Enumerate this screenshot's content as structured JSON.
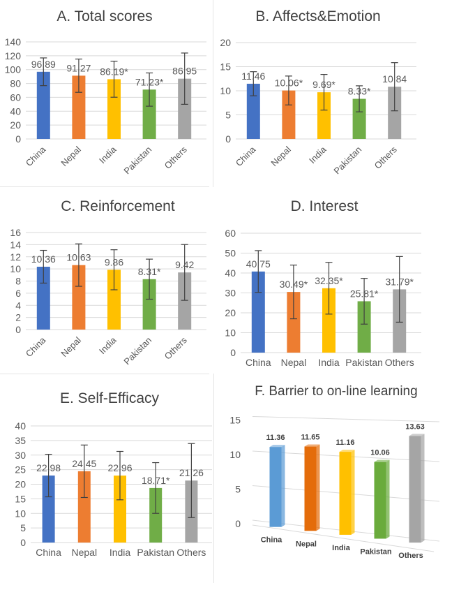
{
  "chart_data": [
    {
      "type": "bar",
      "title": "A. Total scores",
      "categories": [
        "China",
        "Nepal",
        "India",
        "Pakistan",
        "Others"
      ],
      "values": [
        96.89,
        91.27,
        86.19,
        71.23,
        86.95
      ],
      "data_labels": [
        "96.89",
        "91.27",
        "86.19*",
        "71.23*",
        "86.95"
      ],
      "error": [
        20,
        24,
        26,
        24,
        37
      ],
      "ylim": [
        0,
        140
      ],
      "yticks": [
        0,
        20,
        40,
        60,
        80,
        100,
        120,
        140
      ],
      "xlabel": "",
      "ylabel": "",
      "grid": true,
      "legend": "none"
    },
    {
      "type": "bar",
      "title": "B. Affects&Emotion",
      "categories": [
        "China",
        "Nepal",
        "India",
        "Pakistan",
        "Others"
      ],
      "values": [
        11.46,
        10.06,
        9.69,
        8.33,
        10.84
      ],
      "data_labels": [
        "11.46",
        "10.06*",
        "9.69*",
        "8.33*",
        "10.84"
      ],
      "error": [
        2.5,
        3,
        3.7,
        2.7,
        5
      ],
      "ylim": [
        0,
        20
      ],
      "yticks": [
        0,
        5,
        10,
        15,
        20
      ],
      "xlabel": "",
      "ylabel": "",
      "grid": true,
      "legend": "none"
    },
    {
      "type": "bar",
      "title": "C. Reinforcement",
      "categories": [
        "China",
        "Nepal",
        "India",
        "Pakistan",
        "Others"
      ],
      "values": [
        10.36,
        10.63,
        9.86,
        8.31,
        9.42
      ],
      "data_labels": [
        "10.36",
        "10.63",
        "9.86",
        "8.31*",
        "9.42"
      ],
      "error": [
        2.7,
        3.5,
        3.3,
        3.3,
        4.6
      ],
      "ylim": [
        0,
        16
      ],
      "yticks": [
        0,
        2,
        4,
        6,
        8,
        10,
        12,
        14,
        16
      ],
      "xlabel": "",
      "ylabel": "",
      "grid": true,
      "legend": "none"
    },
    {
      "type": "bar",
      "title": "D. Interest",
      "categories": [
        "China",
        "Nepal",
        "India",
        "Pakistan",
        "Others"
      ],
      "values": [
        40.75,
        30.49,
        32.35,
        25.81,
        31.79
      ],
      "data_labels": [
        "40.75",
        "30.49*",
        "32.35*",
        "25.81*",
        "31.79*"
      ],
      "error": [
        10.5,
        13.5,
        13,
        11.5,
        16.5
      ],
      "ylim": [
        0,
        60
      ],
      "yticks": [
        0,
        10,
        20,
        30,
        40,
        50,
        60
      ],
      "xlabel": "",
      "ylabel": "",
      "grid": true,
      "legend": "none"
    },
    {
      "type": "bar",
      "title": "E. Self-Efficacy",
      "categories": [
        "China",
        "Nepal",
        "India",
        "Pakistan",
        "Others"
      ],
      "values": [
        22.98,
        24.45,
        22.96,
        18.71,
        21.26
      ],
      "data_labels": [
        "22.98",
        "24.45",
        "22.96",
        "18.71*",
        "21.26"
      ],
      "error": [
        7.3,
        9,
        8.3,
        8.7,
        12.7
      ],
      "ylim": [
        0,
        40
      ],
      "yticks": [
        0,
        5,
        10,
        15,
        20,
        25,
        30,
        35,
        40
      ],
      "xlabel": "",
      "ylabel": "",
      "grid": true,
      "legend": "none"
    },
    {
      "type": "bar",
      "title": "F. Barrier to on-line learning",
      "categories": [
        "China",
        "Nepal",
        "India",
        "Pakistan",
        "Others"
      ],
      "values": [
        11.36,
        11.65,
        11.16,
        10.06,
        13.63
      ],
      "data_labels": [
        "11.36",
        "11.65",
        "11.16",
        "10.06",
        "13.63"
      ],
      "ylim": [
        0,
        15
      ],
      "yticks": [
        0,
        5,
        10,
        15
      ],
      "xlabel": "",
      "ylabel": "",
      "grid": true,
      "legend": "none",
      "style": "3d"
    }
  ],
  "colors": {
    "China": "#4472c4",
    "Nepal": "#ed7d31",
    "India": "#ffc000",
    "Pakistan": "#70ad47",
    "Others": "#a5a5a5",
    "China3d": "#5b9bd5",
    "Nepal3d": "#e46c0a",
    "India3d": "#ffc000",
    "Pakistan3d": "#6aab3c",
    "Others3d": "#a5a5a5",
    "grid": "#d9d9d9",
    "axisText": "#595959",
    "title": "#404040",
    "errorBar": "#404040"
  }
}
